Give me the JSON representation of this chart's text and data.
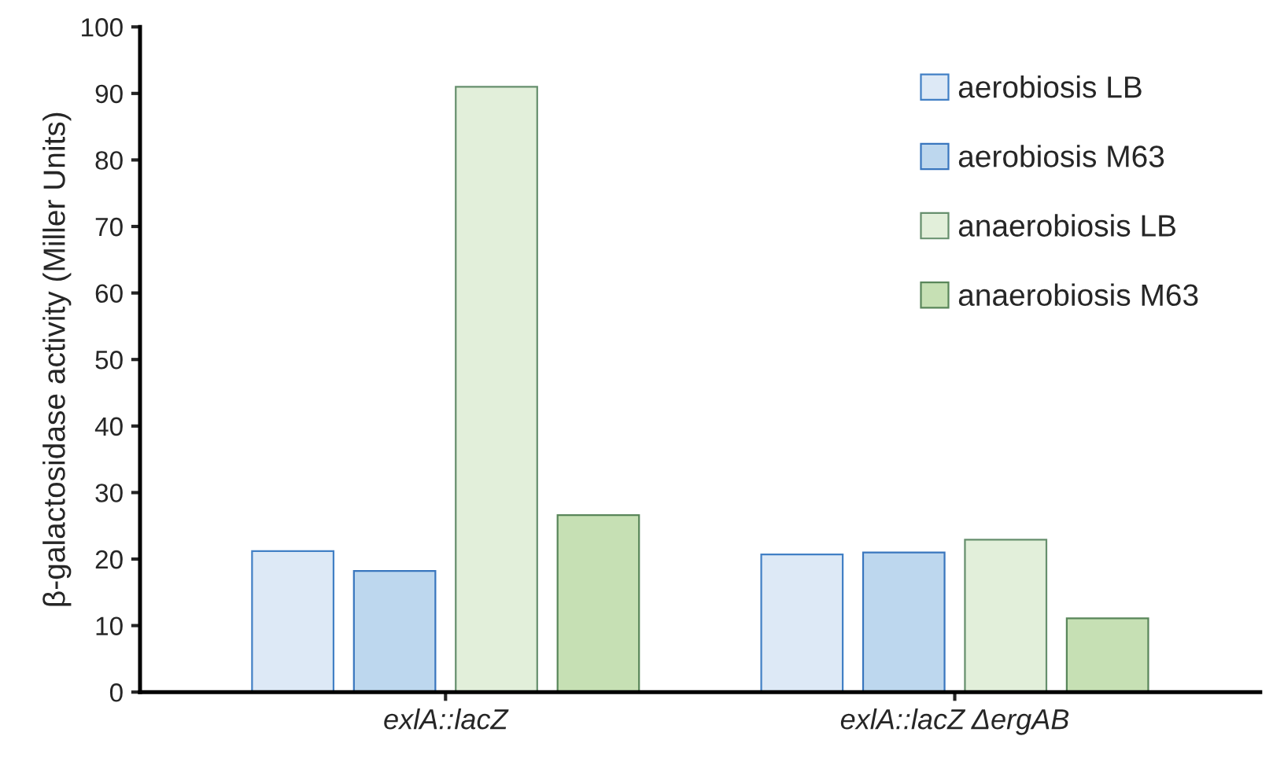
{
  "chart_data": {
    "type": "bar",
    "ylabel": "β-galactosidase activity (Miller Units)",
    "categories": [
      "exlA::lacZ",
      "exlA::lacZ ΔergAB"
    ],
    "series": [
      {
        "name": "aerobiosis LB",
        "color": "#dde9f6",
        "values": [
          21.2,
          20.7
        ]
      },
      {
        "name": "aerobiosis M63",
        "color": "#bdd7ee",
        "values": [
          18.2,
          21.0
        ]
      },
      {
        "name": "anaerobiosis LB",
        "color": "#e2efda",
        "values": [
          91,
          22.9
        ]
      },
      {
        "name": "anaerobiosis M63",
        "color": "#c6e0b4",
        "values": [
          26.6,
          11.1
        ]
      }
    ],
    "ylim": [
      0,
      100
    ],
    "yticks": [
      0,
      10,
      20,
      30,
      40,
      50,
      60,
      70,
      80,
      90,
      100
    ],
    "grid": false,
    "legend": "top right"
  }
}
